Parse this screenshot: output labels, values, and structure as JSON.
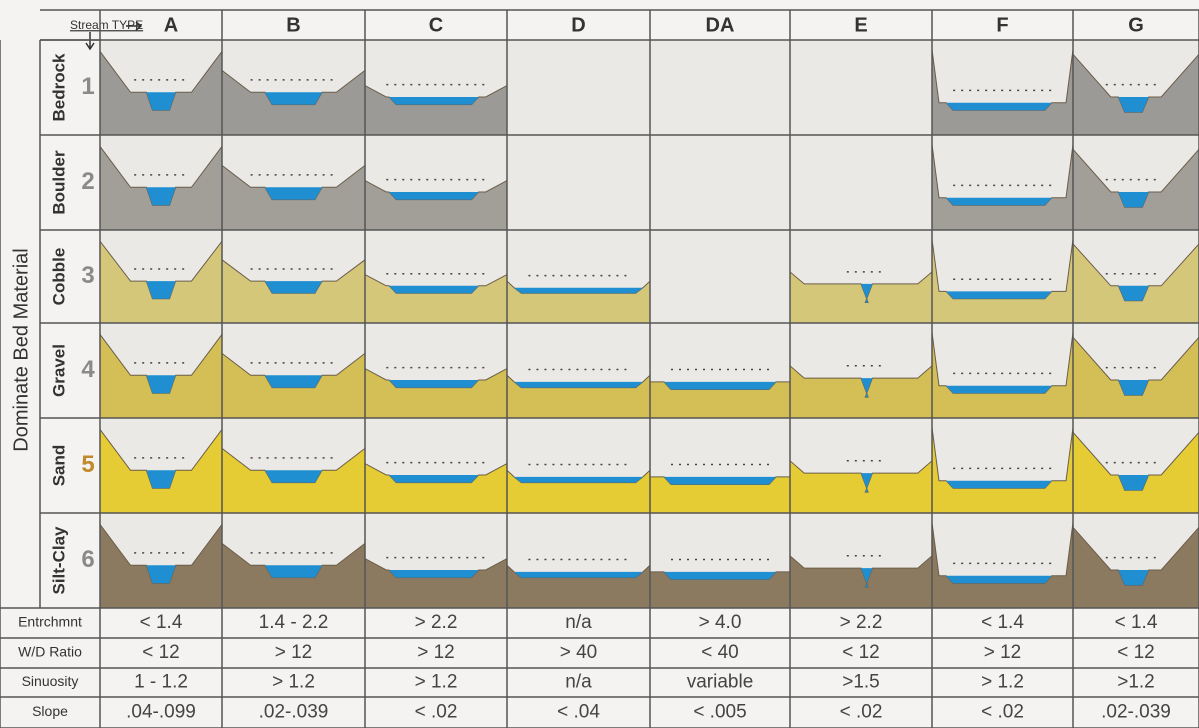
{
  "header": {
    "corner_label": "Stream TYPE",
    "columns": [
      "A",
      "B",
      "C",
      "D",
      "DA",
      "E",
      "F",
      "G"
    ]
  },
  "side_label": "Dominate Bed Material",
  "rows": [
    {
      "material": "Bedrock",
      "number": 1
    },
    {
      "material": "Boulder",
      "number": 2
    },
    {
      "material": "Cobble",
      "number": 3
    },
    {
      "material": "Gravel",
      "number": 4
    },
    {
      "material": "Sand",
      "number": 5
    },
    {
      "material": "Silt-Clay",
      "number": 6
    }
  ],
  "criteria": [
    {
      "label": "Entrchmnt",
      "values": [
        "< 1.4",
        "1.4 - 2.2",
        "> 2.2",
        "n/a",
        "> 4.0",
        "> 2.2",
        "< 1.4",
        "< 1.4"
      ]
    },
    {
      "label": "W/D Ratio",
      "values": [
        "< 12",
        "> 12",
        "> 12",
        "> 40",
        "< 40",
        "< 12",
        "> 12",
        "< 12"
      ]
    },
    {
      "label": "Sinuosity",
      "values": [
        "1 - 1.2",
        "> 1.2",
        "> 1.2",
        "n/a",
        "variable",
        ">1.5",
        "> 1.2",
        ">1.2"
      ]
    },
    {
      "label": "Slope",
      "values": [
        ".04-.099",
        ".02-.039",
        "< .02",
        "< .04",
        "< .005",
        "< .02",
        "< .02",
        ".02-.039"
      ]
    }
  ]
}
